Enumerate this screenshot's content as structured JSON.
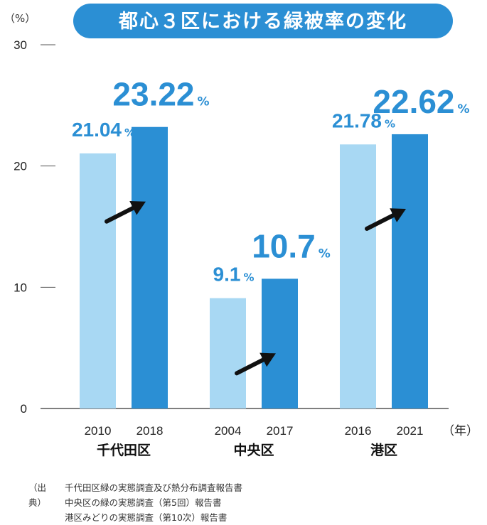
{
  "chart_data": {
    "type": "bar",
    "title": "都心３区における緑被率の変化",
    "y_unit": "（%）",
    "x_unit": "（年）",
    "ylim": [
      0,
      30
    ],
    "yticks": [
      0,
      10,
      20,
      30
    ],
    "grid": false,
    "colors": {
      "earlier": "#A8D8F3",
      "later": "#2B8FD4",
      "accent": "#2B8FD4"
    },
    "groups": [
      {
        "name": "千代田区",
        "bars": [
          {
            "year": "2010",
            "value": 21.04,
            "label": "21.04"
          },
          {
            "year": "2018",
            "value": 23.22,
            "label": "23.22"
          }
        ]
      },
      {
        "name": "中央区",
        "bars": [
          {
            "year": "2004",
            "value": 9.1,
            "label": "9.1"
          },
          {
            "year": "2017",
            "value": 10.7,
            "label": "10.7"
          }
        ]
      },
      {
        "name": "港区",
        "bars": [
          {
            "year": "2016",
            "value": 21.78,
            "label": "21.78"
          },
          {
            "year": "2021",
            "value": 22.62,
            "label": "22.62"
          }
        ]
      }
    ],
    "percent_sign": "%"
  },
  "sources": {
    "prefix": "（出典）",
    "lines": [
      "千代田区緑の実態調査及び熱分布調査報告書",
      "中央区の緑の実態調査（第5回）報告書",
      "港区みどりの実態調査（第10次）報告書"
    ]
  }
}
